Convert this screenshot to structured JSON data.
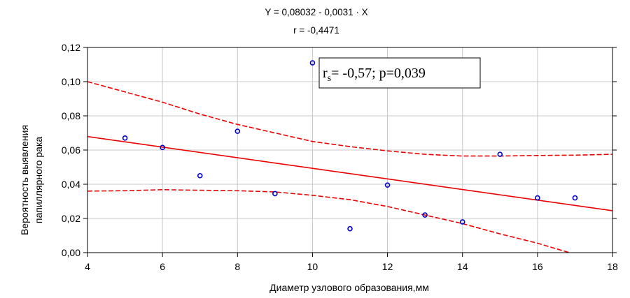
{
  "chart_data": {
    "type": "scatter",
    "title": "Y = 0,08032 - 0,0031 · X",
    "subtitle": "r = -0,4471",
    "xlabel": "Диаметр узлового образования,мм",
    "ylabel_lines": [
      "Вероятность выявления",
      "папиллярного рака"
    ],
    "xlim": [
      4,
      18
    ],
    "ylim": [
      0,
      0.12
    ],
    "xticks": [
      4,
      6,
      8,
      10,
      12,
      14,
      16,
      18
    ],
    "xtick_labels": [
      "4",
      "6",
      "8",
      "10",
      "12",
      "14",
      "16",
      "18"
    ],
    "yticks": [
      0,
      0.02,
      0.04,
      0.06,
      0.08,
      0.1,
      0.12
    ],
    "ytick_labels": [
      "0,00",
      "0,02",
      "0,04",
      "0,06",
      "0,08",
      "0,10",
      "0,12"
    ],
    "grid": true,
    "points": [
      {
        "x": 5,
        "y": 0.067
      },
      {
        "x": 6,
        "y": 0.0615
      },
      {
        "x": 7,
        "y": 0.045
      },
      {
        "x": 8,
        "y": 0.071
      },
      {
        "x": 9,
        "y": 0.0345
      },
      {
        "x": 10,
        "y": 0.111
      },
      {
        "x": 11,
        "y": 0.014
      },
      {
        "x": 12,
        "y": 0.0395
      },
      {
        "x": 13,
        "y": 0.022
      },
      {
        "x": 14,
        "y": 0.018
      },
      {
        "x": 15,
        "y": 0.0575
      },
      {
        "x": 16,
        "y": 0.032
      },
      {
        "x": 17,
        "y": 0.032
      }
    ],
    "regression": {
      "intercept": 0.08032,
      "slope": -0.0031
    },
    "upper_band": [
      [
        4,
        0.1
      ],
      [
        5,
        0.094
      ],
      [
        6,
        0.088
      ],
      [
        7,
        0.081
      ],
      [
        8,
        0.075
      ],
      [
        9,
        0.07
      ],
      [
        10,
        0.065
      ],
      [
        11,
        0.062
      ],
      [
        12,
        0.0595
      ],
      [
        13,
        0.0575
      ],
      [
        14,
        0.0565
      ],
      [
        15,
        0.0565
      ],
      [
        16,
        0.0568
      ],
      [
        17,
        0.057
      ],
      [
        18,
        0.0575
      ]
    ],
    "lower_band": [
      [
        4,
        0.036
      ],
      [
        5,
        0.0362
      ],
      [
        6,
        0.0368
      ],
      [
        7,
        0.0365
      ],
      [
        8,
        0.0362
      ],
      [
        9,
        0.0355
      ],
      [
        10,
        0.0335
      ],
      [
        11,
        0.031
      ],
      [
        12,
        0.027
      ],
      [
        13,
        0.022
      ],
      [
        14,
        0.017
      ],
      [
        15,
        0.011
      ],
      [
        16,
        0.0055
      ],
      [
        17,
        -0.001
      ]
    ],
    "annotation": {
      "r": "r",
      "sub": "s",
      "rest": "= -0,57; p=0,039"
    },
    "colors": {
      "points": "#0000cc",
      "line": "#ee0000",
      "grid": "#c8c8c8"
    }
  }
}
